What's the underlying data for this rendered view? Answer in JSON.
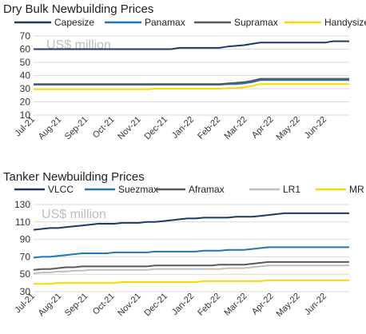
{
  "chart_data": [
    {
      "type": "line",
      "title": "Dry Bulk Newbuilding Prices",
      "unit_label": "US$ million",
      "x_labels": [
        "Jul-21",
        "Aug-21",
        "Sep-21",
        "Oct-21",
        "Nov-21",
        "Dec-21",
        "Jan-22",
        "Feb-22",
        "Mar-22",
        "Apr-22",
        "May-22",
        "Jun-22"
      ],
      "ylim": [
        10,
        70
      ],
      "yticks": [
        10,
        20,
        30,
        40,
        50,
        60,
        70
      ],
      "grid": true,
      "legend_position": "top",
      "series": [
        {
          "name": "Capesize",
          "color": "#1f3864",
          "values": [
            60,
            60,
            60,
            60,
            60,
            60,
            60,
            60,
            60,
            60,
            60,
            60,
            60,
            60,
            60,
            60,
            60,
            60,
            61,
            61,
            61,
            61,
            61,
            61,
            62,
            62.5,
            63,
            64,
            65,
            65,
            65,
            65,
            65,
            65,
            65,
            65,
            65,
            66,
            66,
            66
          ]
        },
        {
          "name": "Panamax",
          "color": "#1f77b4",
          "values": [
            33,
            33,
            33,
            33,
            33,
            33,
            33,
            33,
            33,
            33,
            33,
            33,
            33,
            33,
            33,
            33,
            33,
            33,
            33,
            33,
            33,
            33,
            33,
            33,
            33.5,
            33.5,
            34,
            35,
            36.5,
            36.5,
            36.5,
            36.5,
            36.5,
            36.5,
            36.5,
            36.5,
            36.5,
            36.5,
            36.5,
            36.5
          ]
        },
        {
          "name": "Supramax",
          "color": "#595959",
          "values": [
            33.5,
            33.5,
            33.5,
            33.5,
            33.5,
            33.5,
            33.5,
            33.5,
            33.5,
            33.5,
            33.5,
            33.5,
            33.5,
            33.5,
            33.5,
            33.5,
            33.5,
            33.5,
            33.5,
            33.5,
            33.5,
            33.5,
            33.5,
            33.5,
            34,
            34.5,
            35,
            36,
            37.5,
            37.5,
            37.5,
            37.5,
            37.5,
            37.5,
            37.5,
            37.5,
            37.5,
            37.5,
            37.5,
            37.5
          ]
        },
        {
          "name": "Handysize",
          "color": "#ffd700",
          "values": [
            29.5,
            29.5,
            29.5,
            29.5,
            29.5,
            29.5,
            29.5,
            29.5,
            29.5,
            29.5,
            29.5,
            29.5,
            29.5,
            29.5,
            29.5,
            30,
            30,
            30,
            30,
            30,
            30,
            30,
            30,
            30,
            30.5,
            30.5,
            31,
            32,
            33.5,
            33.5,
            33.5,
            33.5,
            33.5,
            33.5,
            33.5,
            33.5,
            33.5,
            33.5,
            33.5,
            33.5
          ]
        }
      ]
    },
    {
      "type": "line",
      "title": "Tanker Newbuilding Prices",
      "unit_label": "US$ million",
      "x_labels": [
        "Jul-21",
        "Aug-21",
        "Sep-21",
        "Oct-21",
        "Nov-21",
        "Dec-21",
        "Jan-22",
        "Feb-22",
        "Mar-22",
        "Apr-22",
        "May-22",
        "Jun-22"
      ],
      "ylim": [
        30,
        130
      ],
      "yticks": [
        30,
        50,
        70,
        90,
        110,
        130
      ],
      "grid": true,
      "legend_position": "top",
      "series": [
        {
          "name": "VLCC",
          "color": "#1f3864",
          "values": [
            101,
            102,
            103,
            103,
            104,
            105,
            106,
            107,
            108,
            108,
            108,
            109,
            109,
            109,
            110,
            110,
            111,
            112,
            113,
            114,
            114,
            115,
            115,
            115,
            115,
            116,
            116,
            116,
            117,
            118,
            119,
            120,
            120,
            120,
            120,
            120,
            120,
            120,
            120,
            120
          ]
        },
        {
          "name": "Suezmax",
          "color": "#1f77b4",
          "values": [
            69,
            70,
            70,
            71,
            72,
            73,
            74,
            74,
            74,
            74,
            75,
            75,
            75,
            75,
            75,
            76,
            76,
            76,
            76,
            76,
            76,
            77,
            77,
            77,
            78,
            78,
            78,
            79,
            80,
            81,
            81,
            81,
            81,
            81,
            81,
            81,
            81,
            81,
            81,
            81
          ]
        },
        {
          "name": "Aframax",
          "color": "#595959",
          "values": [
            55,
            56,
            56,
            57,
            58,
            58,
            59,
            59,
            59,
            59,
            59,
            59,
            59,
            59,
            59,
            60,
            60,
            60,
            60,
            60,
            60,
            60,
            60,
            61,
            61,
            61,
            61,
            62,
            63,
            64,
            64,
            64,
            64,
            64,
            64,
            64,
            64,
            64,
            64,
            64
          ]
        },
        {
          "name": "LR1",
          "color": "#bfbfbf",
          "values": [
            51,
            52,
            52,
            53,
            53,
            54,
            54,
            55,
            55,
            55,
            55,
            55,
            55,
            55,
            55,
            56,
            56,
            56,
            56,
            56,
            56,
            56,
            56,
            56,
            57,
            57,
            57,
            58,
            59,
            60,
            60,
            60,
            60,
            60,
            60,
            60,
            60,
            60,
            60,
            60
          ]
        },
        {
          "name": "MR",
          "color": "#ffd700",
          "values": [
            39,
            39,
            39,
            40,
            40,
            40,
            40,
            40,
            40,
            40,
            40,
            41,
            41,
            41,
            41,
            41,
            41,
            41,
            41,
            41,
            41,
            42,
            42,
            42,
            42,
            42,
            42,
            42,
            42,
            43,
            43,
            43,
            43,
            43,
            43,
            43,
            43,
            43,
            43,
            43
          ]
        }
      ]
    }
  ]
}
